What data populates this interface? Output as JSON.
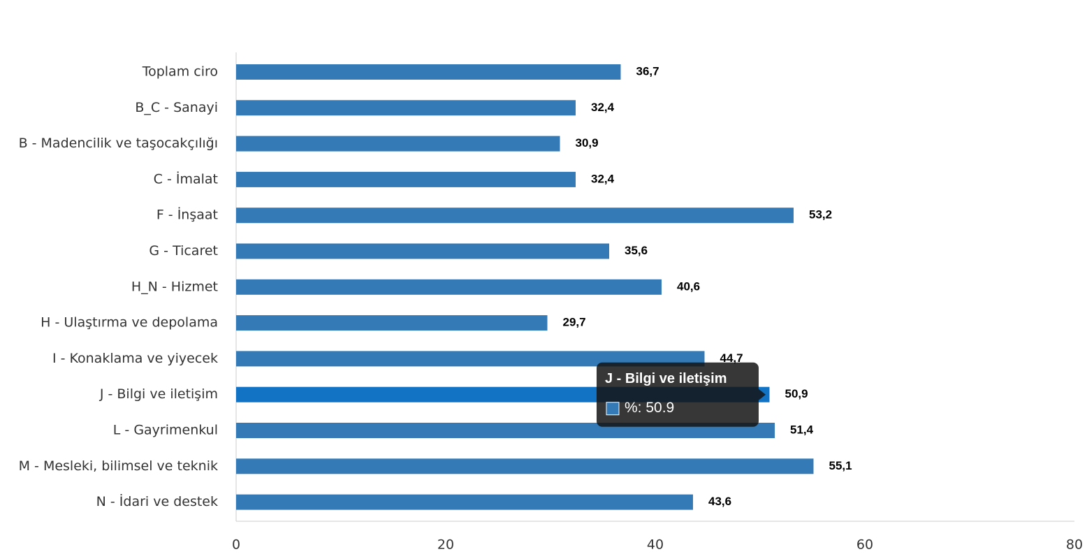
{
  "chart_data": {
    "type": "bar",
    "orientation": "horizontal",
    "categories": [
      "Toplam ciro",
      "B_C - Sanayi",
      "B - Madencilik ve taşocakçılığı",
      "C - İmalat",
      "F - İnşaat",
      "G - Ticaret",
      "H_N - Hizmet",
      "H - Ulaştırma ve depolama",
      "I - Konaklama ve yiyecek",
      "J - Bilgi ve iletişim",
      "L - Gayrimenkul",
      "M - Mesleki, bilimsel ve teknik",
      "N - İdari ve destek"
    ],
    "values": [
      36.7,
      32.4,
      30.9,
      32.4,
      53.2,
      35.6,
      40.6,
      29.7,
      44.7,
      50.9,
      51.4,
      55.1,
      43.6
    ],
    "value_labels": [
      "36,7",
      "32,4",
      "30,9",
      "32,4",
      "53,2",
      "35,6",
      "40,6",
      "29,7",
      "44,7",
      "50,9",
      "51,4",
      "55,1",
      "43,6"
    ],
    "color": "#337ab7",
    "highlight_color": "#1273c4",
    "xlim": [
      0,
      80
    ],
    "xticks": [
      0,
      20,
      40,
      60,
      80
    ],
    "tooltip": {
      "title": "J - Bilgi ve iletişim",
      "text": "%: 50.9"
    }
  }
}
